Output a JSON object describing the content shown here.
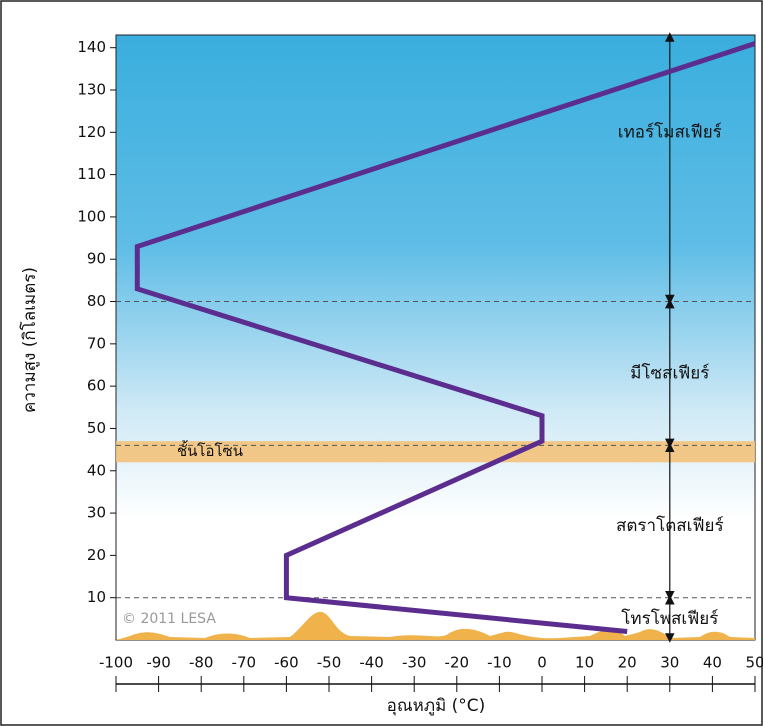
{
  "chart_data": {
    "type": "line",
    "x_label": "อุณหภูมิ (°C)",
    "y_label": "ความสูง (กิโลเมตร)",
    "x": [
      20,
      -60,
      -60,
      0,
      0,
      -95,
      -95,
      50
    ],
    "series": [
      {
        "color": "#5b2d8e",
        "values": [
          2,
          10,
          20,
          47,
          53,
          83,
          93,
          141
        ]
      }
    ],
    "xlim": [
      -100,
      50
    ],
    "xticks": [
      -100,
      -90,
      -80,
      -70,
      -60,
      -50,
      -40,
      -30,
      -20,
      -10,
      0,
      10,
      20,
      30,
      40,
      50
    ],
    "ylim": [
      0,
      143
    ],
    "yticks": [
      10,
      20,
      30,
      40,
      50,
      60,
      70,
      80,
      90,
      100,
      110,
      120,
      130,
      140
    ],
    "boundaries": [
      10,
      46,
      80
    ],
    "ozone_band": [
      42,
      47
    ],
    "ozone_label": "ชั้นโอโซน",
    "layers": [
      "เทอร์โมสเฟียร์",
      "มีโซสเฟียร์",
      "สตราโตสเฟียร์",
      "โทรโพสเฟียร์"
    ],
    "divider_x": 30,
    "credit": "© 2011 LESA"
  }
}
